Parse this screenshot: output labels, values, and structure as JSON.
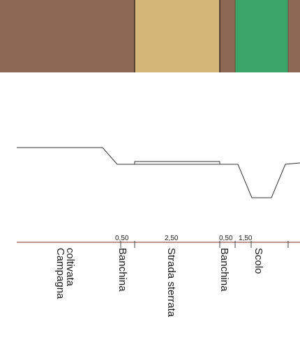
{
  "colors": {
    "campagna": "#8c6952",
    "strada": "#d6b77a",
    "banchina": "#8c6952",
    "scolo": "#3aa469",
    "profile_line": "#333333",
    "ruler_line": "#7a2e22"
  },
  "plan_bands": [
    {
      "name": "Campagna coltivata",
      "color": "#8c6952"
    },
    {
      "name": "Strada sterrata",
      "color": "#d6b77a"
    },
    {
      "name": "Banchina",
      "color": "#8c6952"
    },
    {
      "name": "Scolo",
      "color": "#3aa469"
    },
    {
      "name": "Banchina",
      "color": "#8c6952"
    }
  ],
  "dimensions": [
    {
      "value": "0,50"
    },
    {
      "value": "2,50"
    },
    {
      "value": "0,50"
    },
    {
      "value": "1,50"
    }
  ],
  "zone_labels": {
    "campagna": "Campagna coltivata",
    "banchina_1": "Banchina",
    "strada": "Strada sterrata",
    "banchina_2": "Banchina",
    "scolo": "Scolo"
  }
}
